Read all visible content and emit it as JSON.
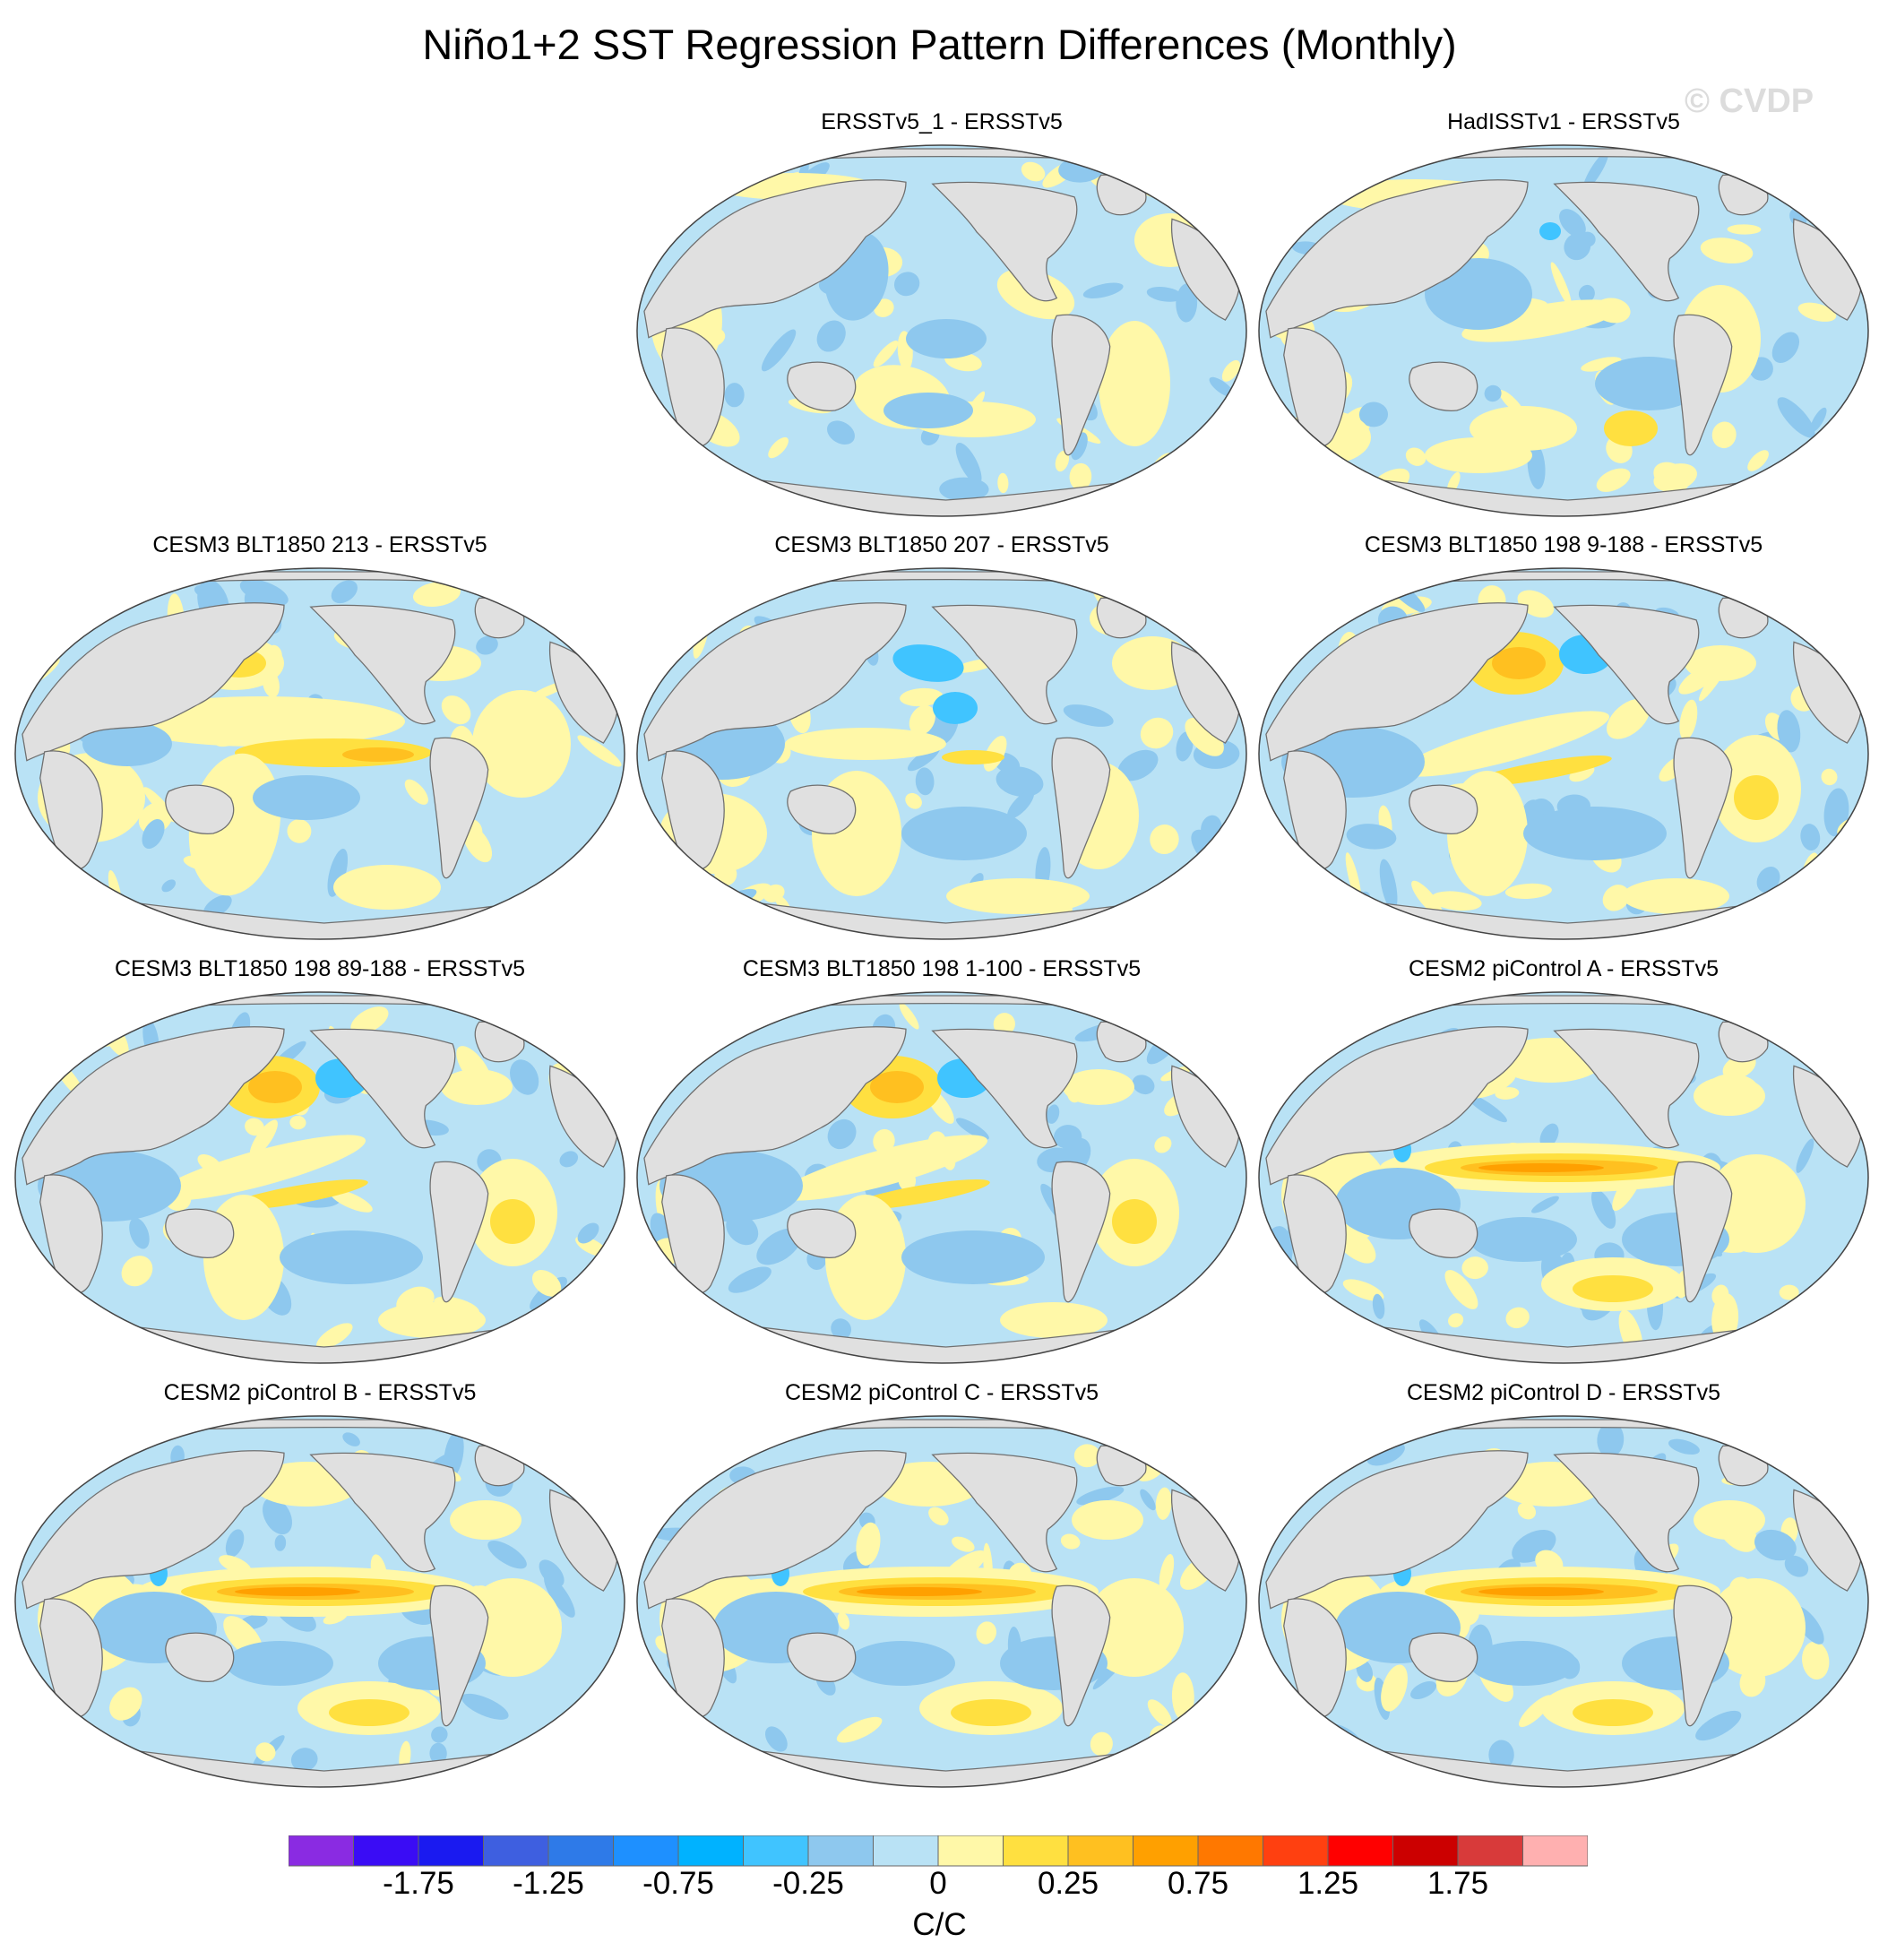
{
  "figure": {
    "title": "Niño1+2 SST Regression Pattern Differences (Monthly)",
    "watermark": "© CVDP"
  },
  "panels": [
    {
      "title": "ERSSTv5_1 - ERSSTv5",
      "pattern": "obs1"
    },
    {
      "title": "HadISSTv1 - ERSSTv5",
      "pattern": "obs2"
    },
    {
      "title": "CESM3 BLT1850 213 - ERSSTv5",
      "pattern": "cesm3a"
    },
    {
      "title": "CESM3 BLT1850 207 - ERSSTv5",
      "pattern": "cesm3b"
    },
    {
      "title": "CESM3 BLT1850 198 9-188 - ERSSTv5",
      "pattern": "cesm3c"
    },
    {
      "title": "CESM3 BLT1850 198 89-188 - ERSSTv5",
      "pattern": "cesm3c"
    },
    {
      "title": "CESM3 BLT1850 198 1-100 - ERSSTv5",
      "pattern": "cesm3c"
    },
    {
      "title": "CESM2 piControl A - ERSSTv5",
      "pattern": "cesm2"
    },
    {
      "title": "CESM2 piControl B - ERSSTv5",
      "pattern": "cesm2"
    },
    {
      "title": "CESM2 piControl C - ERSSTv5",
      "pattern": "cesm2"
    },
    {
      "title": "CESM2 piControl D - ERSSTv5",
      "pattern": "cesm2"
    }
  ],
  "colorbar": {
    "units": "C/C",
    "colors": [
      "#8a2be2",
      "#3a0cf5",
      "#1a1af0",
      "#3e5fe0",
      "#2e7ae8",
      "#1e90ff",
      "#00b2ff",
      "#40c4ff",
      "#8ec8ee",
      "#b9e2f5",
      "#fff8a8",
      "#ffe040",
      "#ffc020",
      "#ffa000",
      "#ff7800",
      "#ff4010",
      "#ff0000",
      "#cc0000",
      "#d83a3a",
      "#ffb0b0"
    ],
    "labels": [
      "-1.75",
      "-1.25",
      "-0.75",
      "-0.25",
      "0",
      "0.25",
      "0.75",
      "1.25",
      "1.75"
    ]
  },
  "map_colors": {
    "land": "#e0e0e0",
    "coast": "#707070",
    "neg": "#b9e2f5",
    "neg2": "#8ec8ee",
    "neg3": "#40c4ff",
    "pos": "#fff8a8",
    "pos2": "#ffe040",
    "pos3": "#ffc020",
    "pos4": "#ffa000"
  }
}
